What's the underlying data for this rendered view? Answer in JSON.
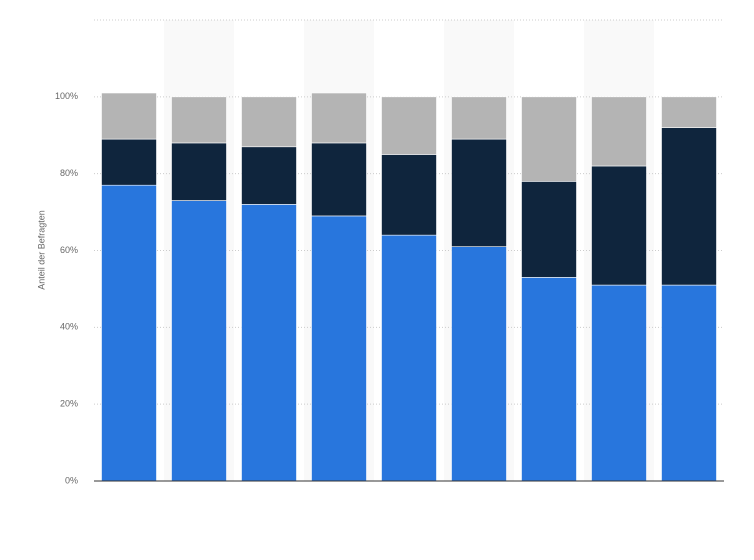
{
  "chart_data": {
    "type": "stacked_bar",
    "y_label": "Anteil der Befragten",
    "categories": [
      null,
      null,
      null,
      null,
      null,
      null,
      null,
      null,
      null
    ],
    "series": [
      {
        "color": "#2876dd",
        "values": [
          77,
          73,
          72,
          69,
          64,
          61,
          53,
          51,
          51
        ]
      },
      {
        "color": "#0f253d",
        "values": [
          12,
          15,
          15,
          19,
          21,
          28,
          25,
          31,
          41
        ]
      },
      {
        "color": "#b4b4b4",
        "values": [
          12,
          12,
          13,
          13,
          15,
          11,
          22,
          18,
          8
        ]
      }
    ],
    "ylim": [
      0,
      120
    ],
    "yticks": [
      {
        "value": 0,
        "label": "0%"
      },
      {
        "value": 20,
        "label": "20%"
      },
      {
        "value": 40,
        "label": "40%"
      },
      {
        "value": 60,
        "label": "60%"
      },
      {
        "value": 80,
        "label": "80%"
      },
      {
        "value": 100,
        "label": "100%"
      }
    ],
    "grid": true
  }
}
